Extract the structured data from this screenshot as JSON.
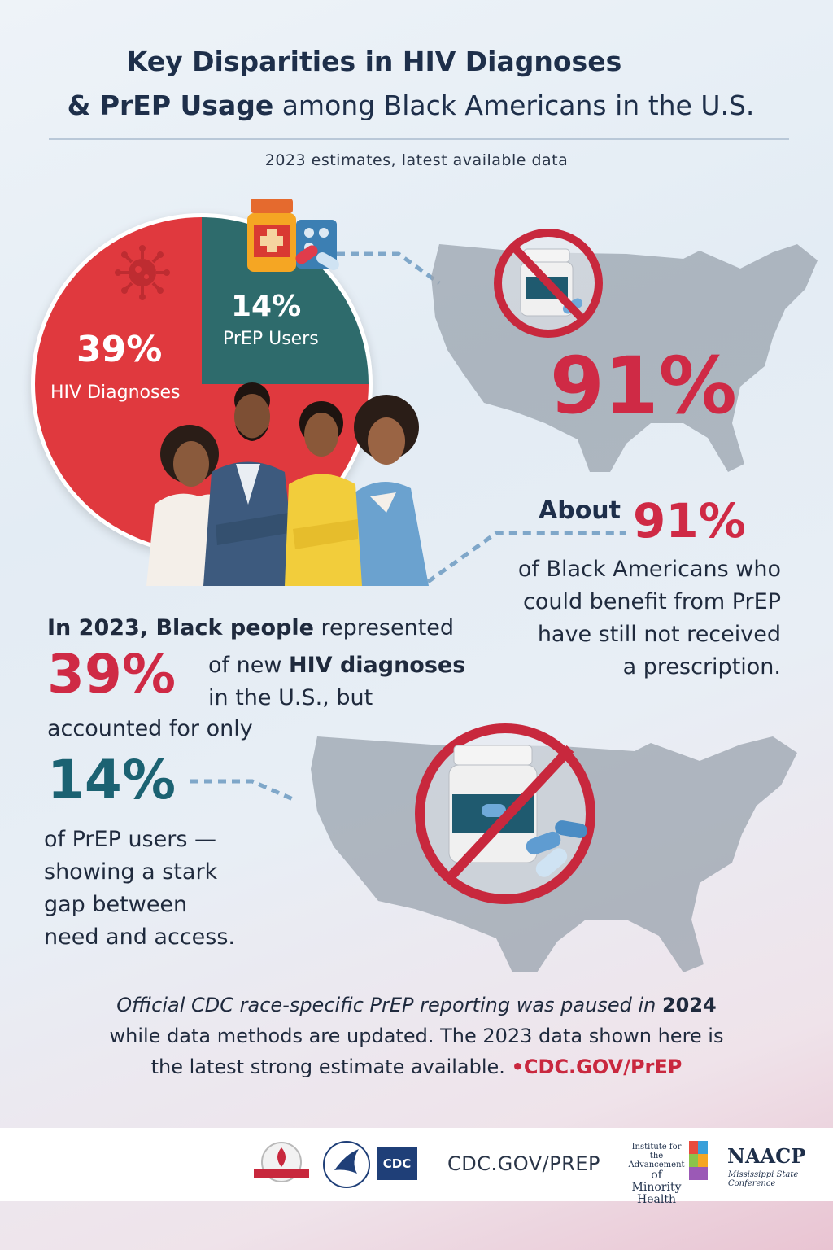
{
  "header": {
    "title_line1": "Key Disparities in HIV Diagnoses",
    "title_line2_bold": "& PrEP Usage",
    "title_line2_rest": " among Black Americans in the U.S.",
    "subtitle": "2023 estimates, latest available data"
  },
  "pie": {
    "hiv_value": "39%",
    "hiv_label": "HIV Diagnoses",
    "prep_value": "14%",
    "prep_label": "PrEP Users"
  },
  "callout": {
    "big_value": "91%",
    "about_word": "About",
    "about_value": "91%",
    "about_line1": "of Black Americans who",
    "about_line2": "could benefit from PrEP",
    "about_line3": "have still not received",
    "about_line4": "a prescription."
  },
  "left_text": {
    "intro_bold": "In 2023, Black people",
    "intro_rest": " represented",
    "value_39": "39%",
    "line2_a": "of new ",
    "line2_bold": "HIV diagnoses",
    "line3": "in the U.S., but",
    "line4": "accounted for only",
    "value_14": "14%",
    "line5": "of PrEP users —",
    "line6": "showing a stark",
    "line7": "gap between",
    "line8": "need and access."
  },
  "footnote": {
    "italic": "Official CDC race-specific PrEP reporting was paused in ",
    "year": "2024",
    "line2": "while data methods are updated. The 2023 data shown here is",
    "line3": "the latest strong estimate available. ",
    "link": "•CDC.GOV/PrEP"
  },
  "logos": {
    "cdc_box": "CDC",
    "url": "CDC.GOV/PREP",
    "iamh_line1": "Institute for the",
    "iamh_line2": "Advancement",
    "iamh_line3": "of Minority",
    "iamh_line4": "Health",
    "naacp": "NAACP",
    "naacp_sub": "Mississippi State Conference"
  },
  "colors": {
    "accent_red": "#cf2a45",
    "pie_red": "#e0393e",
    "pie_teal": "#2e6b6c",
    "teal_text": "#1b6272",
    "navy": "#1e2f4a"
  }
}
